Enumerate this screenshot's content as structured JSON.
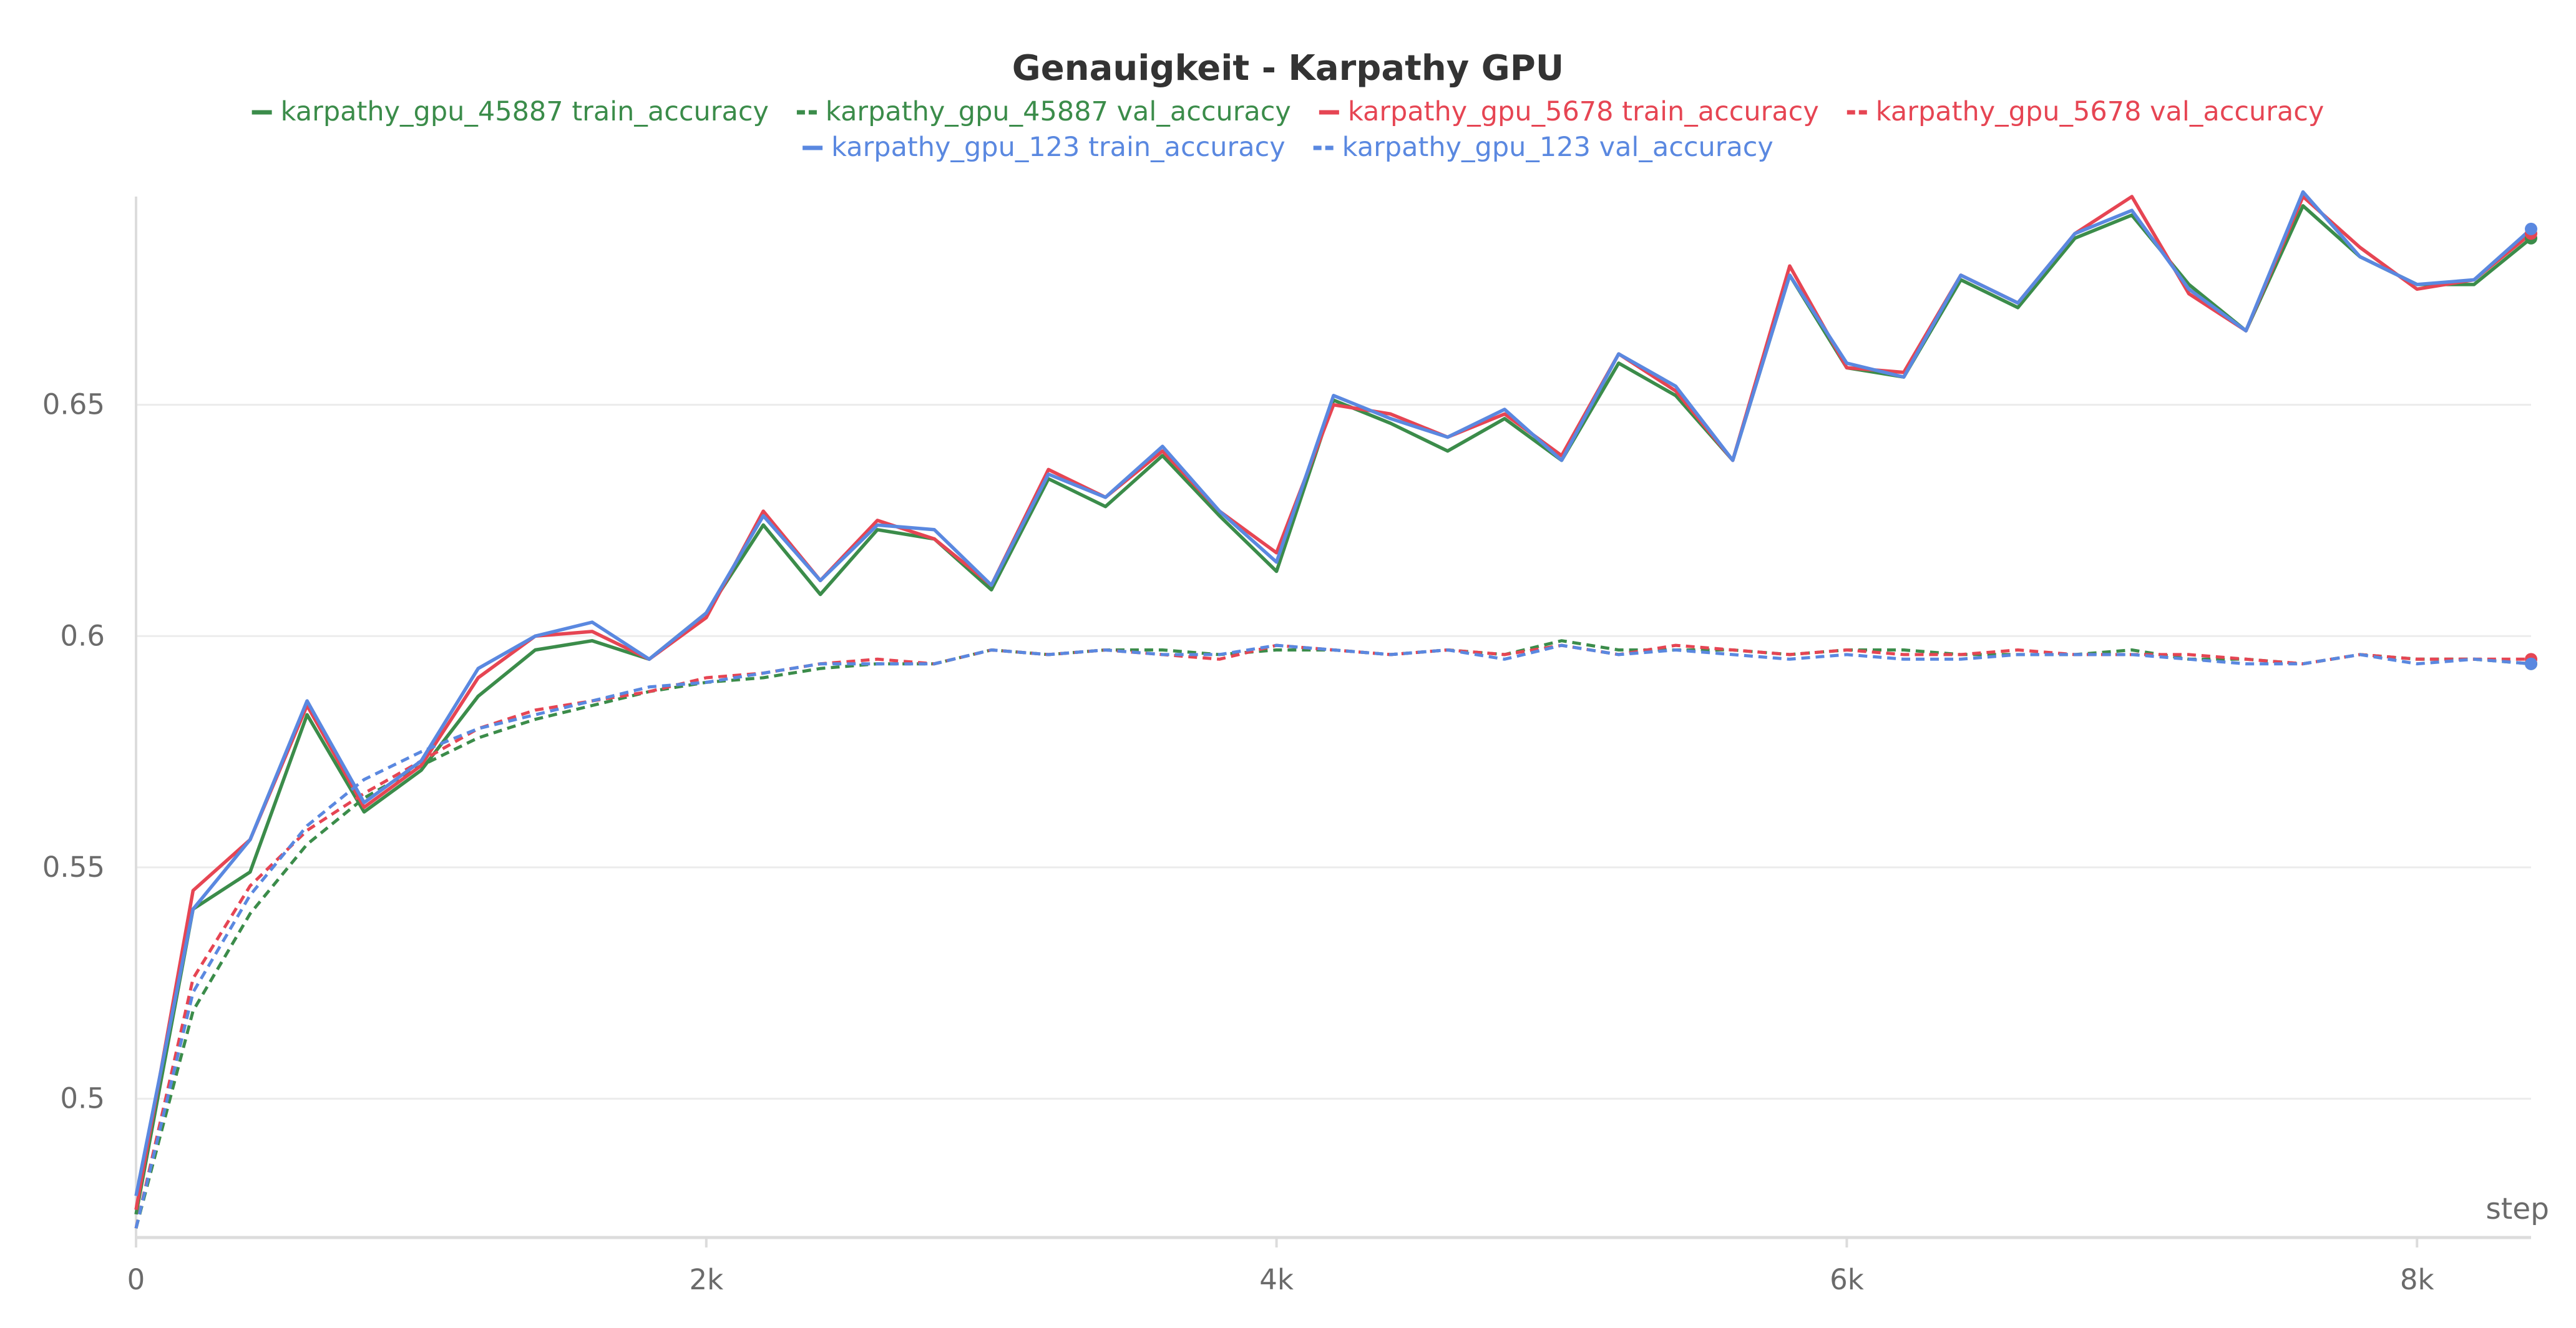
{
  "chart_data": {
    "type": "line",
    "title": "Genauigkeit - Karpathy GPU",
    "xlabel": "step",
    "ylabel": "",
    "xlim": [
      0,
      8400
    ],
    "ylim": [
      0.47,
      0.695
    ],
    "x_ticks": [
      0,
      2000,
      4000,
      6000,
      8000
    ],
    "x_tick_labels": [
      "0",
      "2k",
      "4k",
      "6k",
      "8k"
    ],
    "y_ticks": [
      0.5,
      0.55,
      0.6,
      0.65
    ],
    "y_tick_labels": [
      "0.5",
      "0.55",
      "0.6",
      "0.65"
    ],
    "grid": true,
    "legend_position": "top",
    "x": [
      0,
      200,
      400,
      600,
      800,
      1000,
      1200,
      1400,
      1600,
      1800,
      2000,
      2200,
      2400,
      2600,
      2800,
      3000,
      3200,
      3400,
      3600,
      3800,
      4000,
      4200,
      4400,
      4600,
      4800,
      5000,
      5200,
      5400,
      5600,
      5800,
      6000,
      6200,
      6400,
      6600,
      6800,
      7000,
      7200,
      7400,
      7600,
      7800,
      8000,
      8200,
      8400
    ],
    "series": [
      {
        "name": "karpathy_gpu_45887 train_accuracy",
        "color": "#3b8c4a",
        "dash": "solid",
        "values": [
          0.475,
          0.541,
          0.549,
          0.583,
          0.562,
          0.571,
          0.587,
          0.597,
          0.599,
          0.595,
          0.605,
          0.624,
          0.609,
          0.623,
          0.621,
          0.61,
          0.634,
          0.628,
          0.639,
          0.626,
          0.614,
          0.651,
          0.646,
          0.64,
          0.647,
          0.638,
          0.659,
          0.652,
          0.638,
          0.678,
          0.658,
          0.656,
          0.677,
          0.671,
          0.686,
          0.691,
          0.676,
          0.666,
          0.693,
          0.682,
          0.676,
          0.676,
          0.686
        ]
      },
      {
        "name": "karpathy_gpu_45887 val_accuracy",
        "color": "#3b8c4a",
        "dash": "dashed",
        "values": [
          0.472,
          0.519,
          0.54,
          0.555,
          0.565,
          0.572,
          0.578,
          0.582,
          0.585,
          0.588,
          0.59,
          0.591,
          0.593,
          0.594,
          0.594,
          0.597,
          0.596,
          0.597,
          0.597,
          0.596,
          0.597,
          0.597,
          0.596,
          0.597,
          0.596,
          0.599,
          0.597,
          0.597,
          0.597,
          0.596,
          0.597,
          0.597,
          0.596,
          0.596,
          0.596,
          0.597,
          0.595,
          0.595,
          0.594,
          0.596,
          0.595,
          0.595,
          0.594
        ]
      },
      {
        "name": "karpathy_gpu_5678 train_accuracy",
        "color": "#e64553",
        "dash": "solid",
        "values": [
          0.476,
          0.545,
          0.556,
          0.585,
          0.563,
          0.572,
          0.591,
          0.6,
          0.601,
          0.595,
          0.604,
          0.627,
          0.612,
          0.625,
          0.621,
          0.611,
          0.636,
          0.63,
          0.64,
          0.627,
          0.618,
          0.65,
          0.648,
          0.643,
          0.648,
          0.639,
          0.661,
          0.653,
          0.638,
          0.68,
          0.658,
          0.657,
          0.678,
          0.672,
          0.687,
          0.695,
          0.674,
          0.666,
          0.695,
          0.684,
          0.675,
          0.677,
          0.687
        ]
      },
      {
        "name": "karpathy_gpu_5678 val_accuracy",
        "color": "#e64553",
        "dash": "dashed",
        "values": [
          0.472,
          0.526,
          0.546,
          0.558,
          0.566,
          0.573,
          0.58,
          0.584,
          0.586,
          0.588,
          0.591,
          0.592,
          0.594,
          0.595,
          0.594,
          0.597,
          0.596,
          0.597,
          0.596,
          0.595,
          0.598,
          0.597,
          0.596,
          0.597,
          0.596,
          0.598,
          0.596,
          0.598,
          0.597,
          0.596,
          0.597,
          0.596,
          0.596,
          0.597,
          0.596,
          0.596,
          0.596,
          0.595,
          0.594,
          0.596,
          0.595,
          0.595,
          0.595
        ]
      },
      {
        "name": "karpathy_gpu_123 train_accuracy",
        "color": "#5a88e0",
        "dash": "solid",
        "values": [
          0.479,
          0.541,
          0.556,
          0.586,
          0.564,
          0.573,
          0.593,
          0.6,
          0.603,
          0.595,
          0.605,
          0.626,
          0.612,
          0.624,
          0.623,
          0.611,
          0.635,
          0.63,
          0.641,
          0.627,
          0.616,
          0.652,
          0.647,
          0.643,
          0.649,
          0.638,
          0.661,
          0.654,
          0.638,
          0.678,
          0.659,
          0.656,
          0.678,
          0.672,
          0.687,
          0.692,
          0.675,
          0.666,
          0.696,
          0.682,
          0.676,
          0.677,
          0.688
        ]
      },
      {
        "name": "karpathy_gpu_123 val_accuracy",
        "color": "#5a88e0",
        "dash": "dashed",
        "values": [
          0.472,
          0.523,
          0.544,
          0.559,
          0.569,
          0.575,
          0.58,
          0.583,
          0.586,
          0.589,
          0.59,
          0.592,
          0.594,
          0.594,
          0.594,
          0.597,
          0.596,
          0.597,
          0.596,
          0.596,
          0.598,
          0.597,
          0.596,
          0.597,
          0.595,
          0.598,
          0.596,
          0.597,
          0.596,
          0.595,
          0.596,
          0.595,
          0.595,
          0.596,
          0.596,
          0.596,
          0.595,
          0.594,
          0.594,
          0.596,
          0.594,
          0.595,
          0.594
        ]
      }
    ]
  }
}
